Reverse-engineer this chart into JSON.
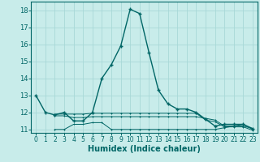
{
  "xlabel": "Humidex (Indice chaleur)",
  "background_color": "#c8ecea",
  "grid_color": "#a8d8d8",
  "line_color": "#006666",
  "spine_color": "#006666",
  "xlim": [
    -0.5,
    23.5
  ],
  "ylim": [
    10.8,
    18.5
  ],
  "yticks": [
    11,
    12,
    13,
    14,
    15,
    16,
    17,
    18
  ],
  "xticks": [
    0,
    1,
    2,
    3,
    4,
    5,
    6,
    7,
    8,
    9,
    10,
    11,
    12,
    13,
    14,
    15,
    16,
    17,
    18,
    19,
    20,
    21,
    22,
    23
  ],
  "series": [
    {
      "x": [
        0,
        1,
        2,
        3,
        4,
        5,
        6,
        7,
        8,
        9,
        10,
        11,
        12,
        13,
        14,
        15,
        16,
        17,
        18,
        19,
        20,
        21,
        22,
        23
      ],
      "y": [
        13,
        12,
        11.85,
        12,
        11.5,
        11.5,
        12,
        14,
        14.8,
        15.9,
        18.05,
        17.8,
        15.5,
        13.3,
        12.5,
        12.2,
        12.2,
        12,
        11.6,
        11.2,
        11.3,
        11.3,
        11.3,
        11.05
      ],
      "lw": 1.0,
      "ms": 3.0
    },
    {
      "x": [
        2,
        3,
        4,
        5,
        6,
        7,
        8,
        9,
        10,
        11,
        12,
        13,
        14,
        15,
        16,
        17,
        18,
        19,
        20,
        21,
        22,
        23
      ],
      "y": [
        11.8,
        11.8,
        11.7,
        11.7,
        11.75,
        11.75,
        11.75,
        11.75,
        11.75,
        11.75,
        11.75,
        11.75,
        11.75,
        11.75,
        11.75,
        11.75,
        11.65,
        11.55,
        11.2,
        11.2,
        11.2,
        11.05
      ],
      "lw": 0.7,
      "ms": 2.0
    },
    {
      "x": [
        2,
        3,
        4,
        5,
        6,
        7,
        8,
        9,
        10,
        11,
        12,
        13,
        14,
        15,
        16,
        17,
        18,
        19,
        20,
        21,
        22,
        23
      ],
      "y": [
        11.0,
        11.0,
        11.3,
        11.3,
        11.4,
        11.4,
        11.0,
        11.0,
        11.0,
        11.0,
        11.0,
        11.0,
        11.0,
        11.0,
        11.0,
        11.0,
        11.0,
        11.0,
        11.1,
        11.2,
        11.3,
        11.0
      ],
      "lw": 0.7,
      "ms": 2.0
    },
    {
      "x": [
        2,
        3,
        4,
        5,
        6,
        7,
        8,
        9,
        10,
        11,
        12,
        13,
        14,
        15,
        16,
        17,
        18,
        19,
        20,
        21,
        22,
        23
      ],
      "y": [
        11.9,
        11.9,
        11.9,
        11.9,
        11.95,
        11.95,
        11.95,
        11.95,
        11.95,
        11.95,
        11.95,
        11.95,
        11.95,
        11.95,
        11.95,
        11.95,
        11.55,
        11.45,
        11.15,
        11.15,
        11.15,
        10.95
      ],
      "lw": 0.7,
      "ms": 2.0
    }
  ],
  "tick_fontsize": 5.5,
  "xlabel_fontsize": 7.0,
  "xlabel_fontweight": "bold"
}
